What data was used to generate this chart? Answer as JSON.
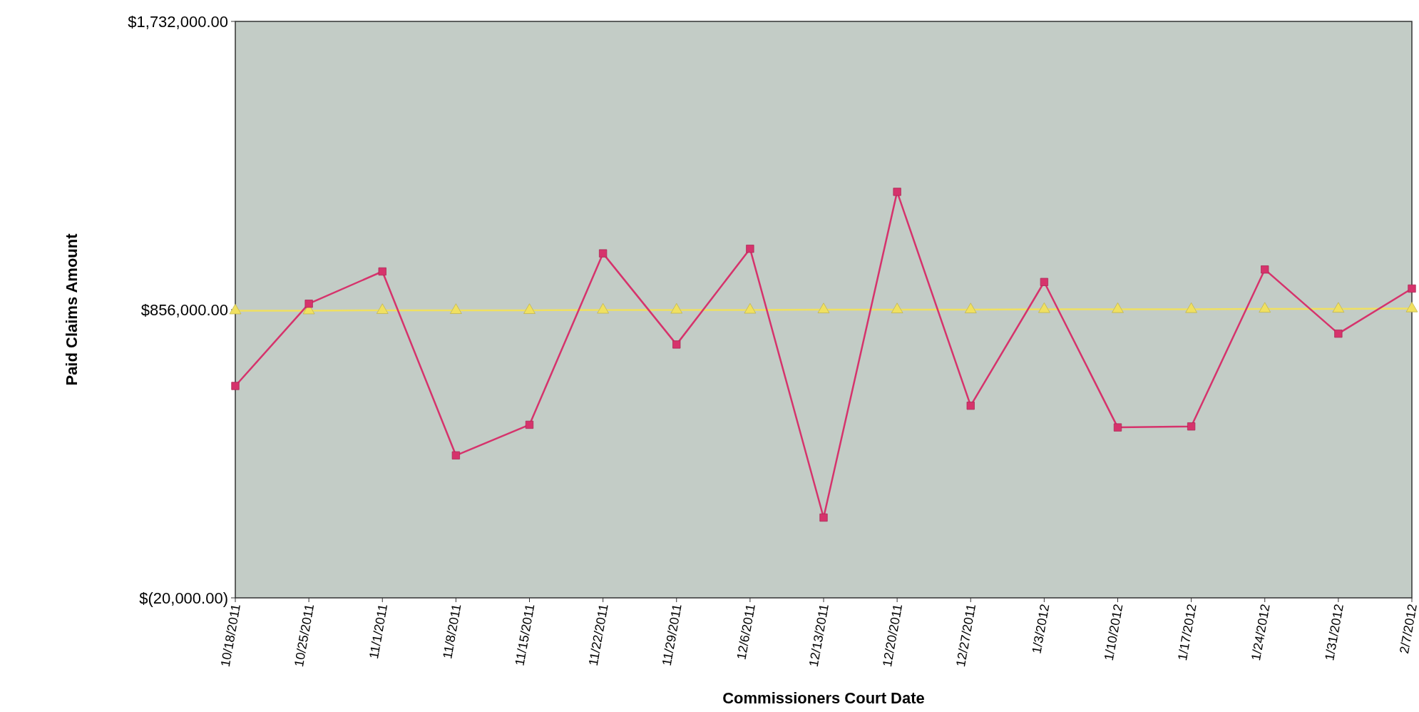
{
  "chart_data": {
    "type": "line",
    "xlabel": "Commissioners Court Date",
    "ylabel": "Paid Claims Amount",
    "categories": [
      "10/18/2011",
      "10/25/2011",
      "11/1/2011",
      "11/8/2011",
      "11/15/2011",
      "11/22/2011",
      "11/29/2011",
      "12/6/2011",
      "12/13/2011",
      "12/20/2011",
      "12/27/2011",
      "1/3/2012",
      "1/10/2012",
      "1/17/2012",
      "1/24/2012",
      "1/31/2012",
      "2/7/2012"
    ],
    "series": [
      {
        "color": "#f0e060",
        "marker": "triangle",
        "values": [
          853000,
          853000,
          854000,
          854000,
          854000,
          855000,
          855000,
          855000,
          856000,
          856000,
          856000,
          857000,
          857000,
          857000,
          858000,
          858000,
          859000
        ]
      },
      {
        "color": "#d6336c",
        "marker": "square",
        "values": [
          624000,
          874000,
          972000,
          413000,
          506000,
          1027000,
          750000,
          1041000,
          224000,
          1214000,
          564000,
          940000,
          498000,
          501000,
          978000,
          783000,
          920000
        ]
      }
    ],
    "ylim": [
      -20000,
      1732000
    ],
    "yticks": [
      {
        "value": -20000,
        "label": "$(20,000.00)"
      },
      {
        "value": 856000,
        "label": "$856,000.00"
      },
      {
        "value": 1732000,
        "label": "$1,732,000.00"
      }
    ],
    "grid": false
  }
}
